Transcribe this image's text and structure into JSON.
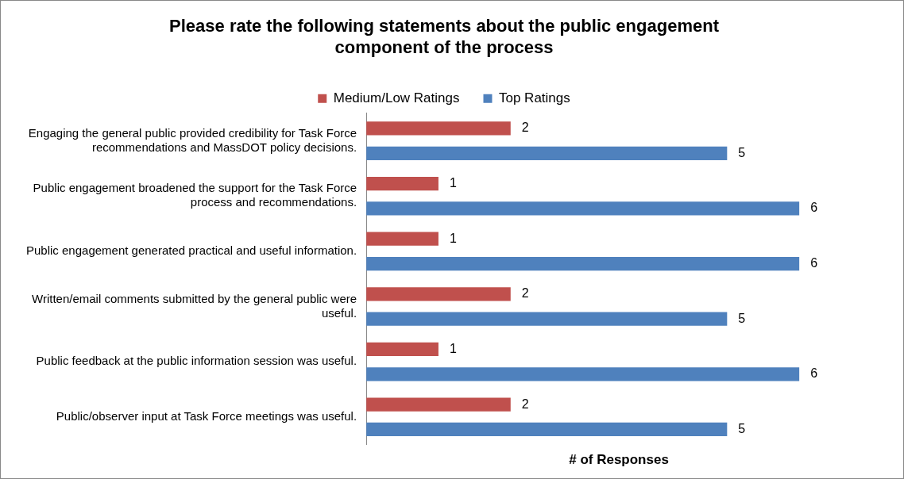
{
  "chart_data": {
    "type": "bar",
    "orientation": "horizontal",
    "title": "Please rate the following statements about the public engagement component of the process",
    "xlabel": "# of Responses",
    "categories": [
      "Engaging the general public provided credibility for Task Force recommendations and MassDOT policy decisions.",
      "Public engagement broadened the support for the Task Force process and recommendations.",
      "Public engagement generated practical and useful information.",
      "Written/email comments submitted by the general public were useful.",
      "Public feedback at the public information session was useful.",
      "Public/observer input at Task Force meetings was useful."
    ],
    "series": [
      {
        "name": "Medium/Low Ratings",
        "color": "#c0504d",
        "values": [
          2,
          1,
          1,
          2,
          1,
          2
        ]
      },
      {
        "name": "Top Ratings",
        "color": "#4f81bd",
        "values": [
          5,
          6,
          6,
          5,
          6,
          5
        ]
      }
    ],
    "data_labels": true,
    "legend": "top",
    "grid": false
  }
}
